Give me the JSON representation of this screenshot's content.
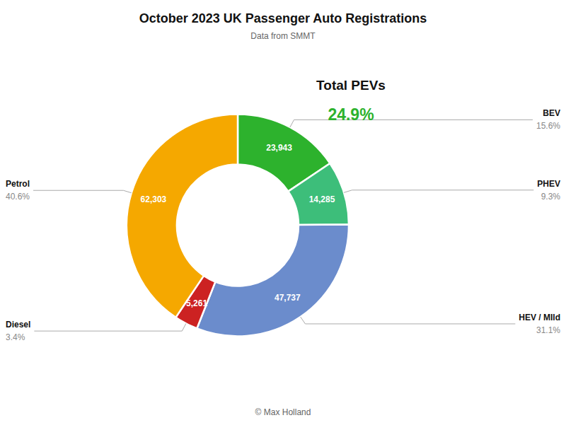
{
  "chart_data": {
    "type": "pie",
    "title": "October 2023 UK Passenger Auto Registrations",
    "subtitle": "Data from SMMT",
    "categories": [
      "BEV",
      "PHEV",
      "HEV / MIld",
      "Diesel",
      "Petrol"
    ],
    "values": [
      23943,
      14285,
      47737,
      5261,
      62303
    ],
    "value_labels": [
      "23,943",
      "14,285",
      "47,737",
      "5,261",
      "62,303"
    ],
    "shares": [
      15.6,
      9.3,
      31.1,
      3.4,
      40.6
    ],
    "share_labels": [
      "15.6%",
      "9.3%",
      "31.1%",
      "3.4%",
      "40.6%"
    ],
    "colors": [
      "#2db22d",
      "#3dbe7a",
      "#6b8ccc",
      "#cc2222",
      "#f5a800"
    ],
    "data_labels": true,
    "annotations": [
      {
        "text": "Total PEVs"
      },
      {
        "text": "24.9%",
        "value": 24.9,
        "color": "#2db22d"
      },
      {
        "text": "© Max Holland"
      }
    ]
  }
}
